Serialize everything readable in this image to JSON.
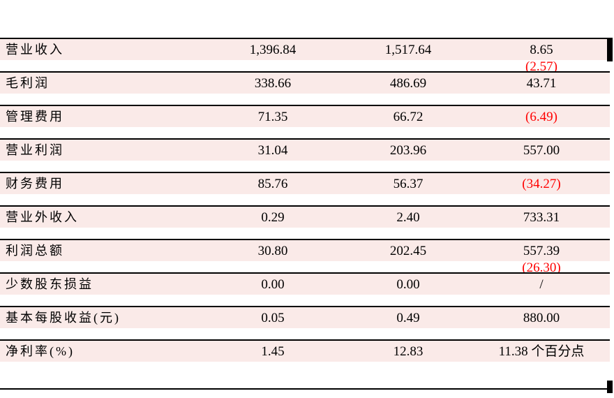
{
  "table": {
    "rows": [
      {
        "label": "营业收入",
        "v1": "1,396.84",
        "v2": "1,517.64",
        "v3": "8.65",
        "v3_red": false,
        "sub": "(2.57)"
      },
      {
        "label": "毛利润",
        "v1": "338.66",
        "v2": "486.69",
        "v3": "43.71",
        "v3_red": false
      },
      {
        "label": "管理费用",
        "v1": "71.35",
        "v2": "66.72",
        "v3": "(6.49)",
        "v3_red": true
      },
      {
        "label": "营业利润",
        "v1": "31.04",
        "v2": "203.96",
        "v3": "557.00",
        "v3_red": false
      },
      {
        "label": "财务费用",
        "v1": "85.76",
        "v2": "56.37",
        "v3": "(34.27)",
        "v3_red": true
      },
      {
        "label": "营业外收入",
        "v1": "0.29",
        "v2": "2.40",
        "v3": "733.31",
        "v3_red": false
      },
      {
        "label": "利润总额",
        "v1": "30.80",
        "v2": "202.45",
        "v3": "557.39",
        "v3_red": false,
        "sub": "(26.30)"
      },
      {
        "label": "少数股东损益",
        "v1": "0.00",
        "v2": "0.00",
        "v3": "/",
        "v3_red": false
      },
      {
        "label": "基本每股收益(元)",
        "v1": "0.05",
        "v2": "0.49",
        "v3": "880.00",
        "v3_red": false
      },
      {
        "label": "净利率(%)",
        "v1": "1.45",
        "v2": "12.83",
        "v3": "11.38 个百分点",
        "v3_red": false
      }
    ],
    "colors": {
      "row_background": "#faeae8",
      "negative_value": "#ff0000",
      "border_line": "#000000",
      "text": "#000000"
    }
  }
}
